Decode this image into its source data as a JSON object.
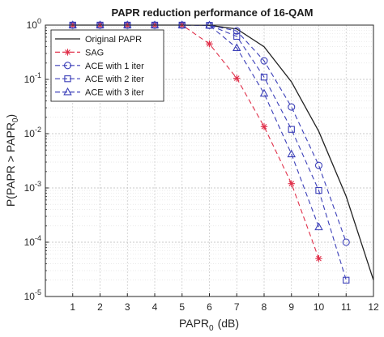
{
  "chart_data": {
    "type": "line",
    "title": "PAPR reduction performance of 16-QAM",
    "xlabel": {
      "main": "PAPR",
      "sub": "0",
      "unit": "(dB)"
    },
    "ylabel": {
      "prefix": "P(PAPR > PAPR",
      "sub": "0",
      "suffix": ")"
    },
    "xlim": [
      0,
      12
    ],
    "ylim": [
      1e-05,
      1
    ],
    "yscale": "log",
    "grid": true,
    "legend_position": "top-left",
    "x_ticks": [
      "1",
      "2",
      "3",
      "4",
      "5",
      "6",
      "7",
      "8",
      "9",
      "10",
      "11",
      "12"
    ],
    "y_ticks": [
      {
        "value": 1,
        "base": "10",
        "exp": "0"
      },
      {
        "value": 0.1,
        "base": "10",
        "exp": "-1"
      },
      {
        "value": 0.01,
        "base": "10",
        "exp": "-2"
      },
      {
        "value": 0.001,
        "base": "10",
        "exp": "-3"
      },
      {
        "value": 0.0001,
        "base": "10",
        "exp": "-4"
      },
      {
        "value": 1e-05,
        "base": "10",
        "exp": "-5"
      }
    ],
    "series": [
      {
        "name": "Original PAPR",
        "color": "#222222",
        "dash": "solid",
        "marker": "none",
        "x": [
          1,
          2,
          3,
          4,
          5,
          6,
          7,
          8,
          9,
          10,
          11,
          12
        ],
        "y": [
          1,
          1,
          1,
          1,
          1,
          0.99,
          0.85,
          0.4,
          0.09,
          0.011,
          0.0007,
          2e-05
        ]
      },
      {
        "name": "SAG",
        "color": "#e0304a",
        "dash": "dashed",
        "marker": "asterisk",
        "x": [
          1,
          2,
          3,
          4,
          5,
          6,
          7,
          8,
          9,
          10
        ],
        "y": [
          1,
          1,
          1,
          1,
          1,
          0.45,
          0.105,
          0.0135,
          0.0012,
          5e-05
        ]
      },
      {
        "name": "ACE with 1 iter",
        "color": "#3b3fb8",
        "dash": "dashed",
        "marker": "circle",
        "x": [
          1,
          2,
          3,
          4,
          5,
          6,
          7,
          8,
          9,
          10,
          11
        ],
        "y": [
          1,
          1,
          1,
          1,
          1,
          0.99,
          0.78,
          0.22,
          0.031,
          0.0026,
          0.0001
        ]
      },
      {
        "name": "ACE with 2 iter",
        "color": "#3b3fb8",
        "dash": "dashed",
        "marker": "square",
        "x": [
          1,
          2,
          3,
          4,
          5,
          6,
          7,
          8,
          9,
          10,
          11
        ],
        "y": [
          1,
          1,
          1,
          1,
          1,
          0.99,
          0.62,
          0.11,
          0.012,
          0.0009,
          2e-05
        ]
      },
      {
        "name": "ACE with 3 iter",
        "color": "#3b3fb8",
        "dash": "dashed",
        "marker": "triangle",
        "x": [
          1,
          2,
          3,
          4,
          5,
          6,
          7,
          8,
          9,
          10
        ],
        "y": [
          1,
          1,
          1,
          1,
          1,
          0.99,
          0.38,
          0.055,
          0.0042,
          0.00019
        ]
      }
    ]
  }
}
